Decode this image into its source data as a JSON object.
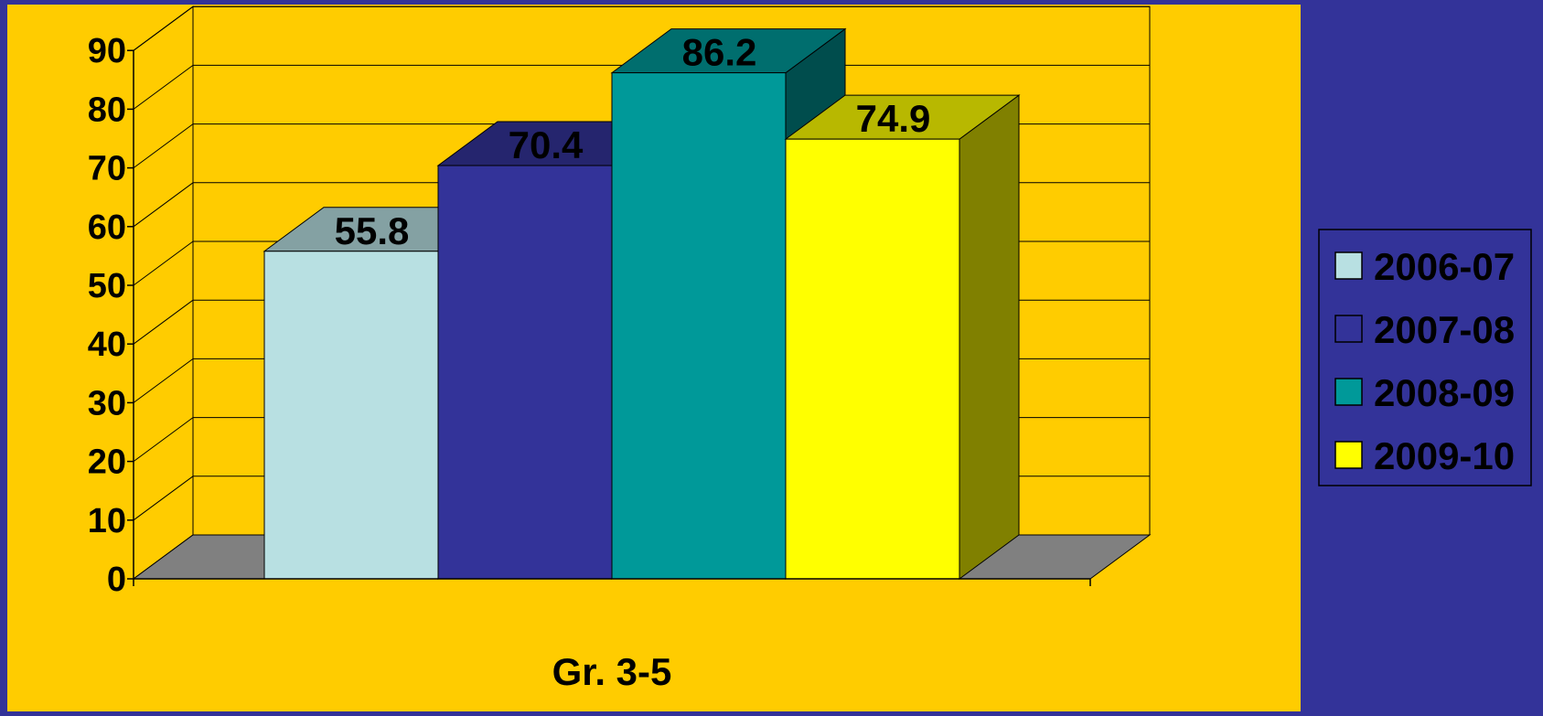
{
  "chart_data": {
    "type": "bar",
    "categories": [
      "Gr. 3-5"
    ],
    "series": [
      {
        "name": "2006-07",
        "values": [
          55.8
        ],
        "color": "#B8E0E2",
        "data_label": "55.8"
      },
      {
        "name": "2007-08",
        "values": [
          70.4
        ],
        "color": "#333399",
        "data_label": "70.4"
      },
      {
        "name": "2008-09",
        "values": [
          86.2
        ],
        "color": "#009999",
        "data_label": "86.2"
      },
      {
        "name": "2009-10",
        "values": [
          74.9
        ],
        "color": "#FFFF00",
        "data_label": "74.9"
      }
    ],
    "y_ticks": [
      "0",
      "10",
      "20",
      "30",
      "40",
      "50",
      "60",
      "70",
      "80",
      "90"
    ],
    "ylim": [
      0,
      90
    ],
    "grid": true,
    "three_d": true,
    "legend_position": "right",
    "colors": {
      "slide_background": "#333399",
      "plot_area": "#FFCC00",
      "floor": "#808080"
    }
  }
}
